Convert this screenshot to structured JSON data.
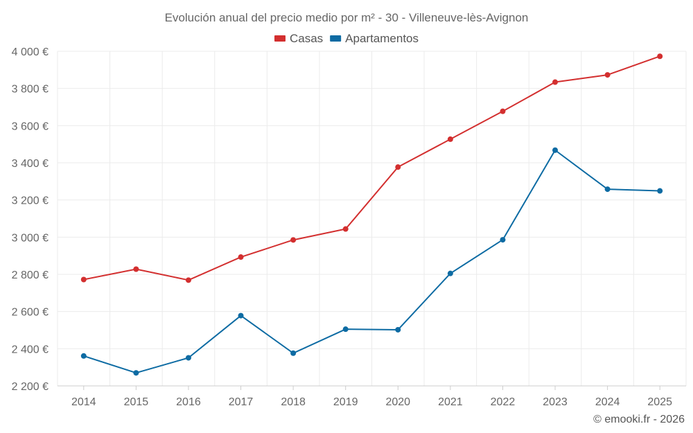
{
  "chart_data": {
    "type": "line",
    "title": "Evolución anual del precio medio por m² - 30 - Villeneuve-lès-Avignon",
    "xlabel": "",
    "ylabel": "",
    "categories": [
      "2014",
      "2015",
      "2016",
      "2017",
      "2018",
      "2019",
      "2020",
      "2021",
      "2022",
      "2023",
      "2024",
      "2025"
    ],
    "ylim": [
      2200,
      4000
    ],
    "yticks": [
      2200,
      2400,
      2600,
      2800,
      3000,
      3200,
      3400,
      3600,
      3800,
      4000
    ],
    "ytick_labels": [
      "2 200 €",
      "2 400 €",
      "2 600 €",
      "2 800 €",
      "3 000 €",
      "3 200 €",
      "3 400 €",
      "3 600 €",
      "3 800 €",
      "4 000 €"
    ],
    "legend_position": "top-center",
    "grid": true,
    "series": [
      {
        "name": "Casas",
        "color": "#d32f2f",
        "values": [
          2772,
          2828,
          2769,
          2893,
          2985,
          3044,
          3377,
          3527,
          3677,
          3834,
          3873,
          3973
        ]
      },
      {
        "name": "Apartamentos",
        "color": "#0d6ba3",
        "values": [
          2361,
          2270,
          2351,
          2578,
          2376,
          2505,
          2502,
          2805,
          2986,
          3468,
          3258,
          3249
        ]
      }
    ]
  },
  "credit": "© emooki.fr - 2026"
}
